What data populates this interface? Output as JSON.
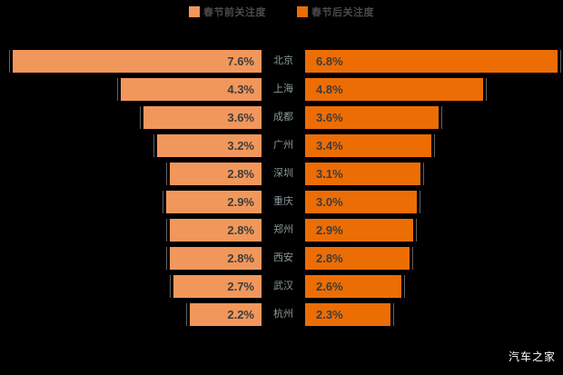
{
  "legend": {
    "before_label": "春节前关注度",
    "after_label": "春节后关注度"
  },
  "watermark": "汽车之家",
  "colors": {
    "before_bar": "#F2975B",
    "after_bar": "#ED6D05",
    "background": "#000000",
    "value_text": "#3D3D3D",
    "city_text": "#8A9A9C"
  },
  "chart_data": {
    "type": "bar",
    "variant": "tornado",
    "title": "",
    "categories": [
      "北京",
      "上海",
      "成都",
      "广州",
      "深圳",
      "重庆",
      "郑州",
      "西安",
      "武汉",
      "杭州"
    ],
    "series": [
      {
        "name": "春节前关注度",
        "color": "#F2975B",
        "values": [
          7.6,
          4.3,
          3.6,
          3.2,
          2.8,
          2.9,
          2.8,
          2.8,
          2.7,
          2.2
        ]
      },
      {
        "name": "春节后关注度",
        "color": "#ED6D05",
        "values": [
          6.8,
          4.8,
          3.6,
          3.4,
          3.1,
          3.0,
          2.9,
          2.8,
          2.6,
          2.3
        ]
      }
    ],
    "value_format": "0.0%",
    "value_labels": "on-bar",
    "legend_position": "top",
    "axis_visible": false,
    "grid": false
  }
}
